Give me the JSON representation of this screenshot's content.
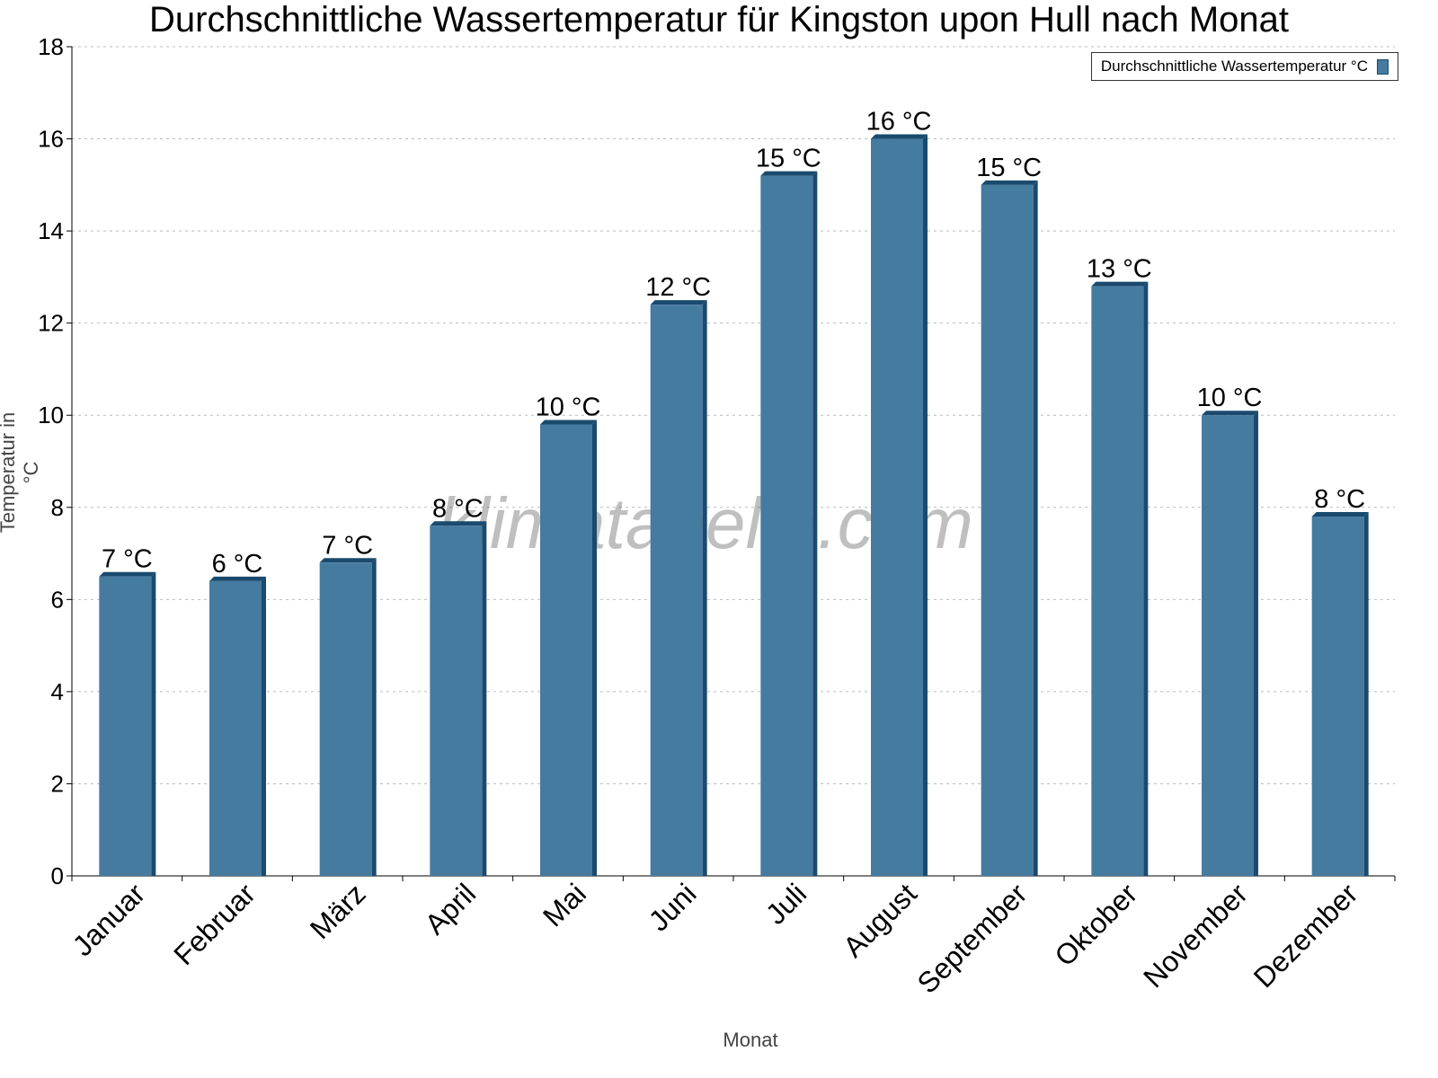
{
  "chart_data": {
    "type": "bar",
    "title": "Durchschnittliche Wassertemperatur für Kingston upon Hull nach Monat",
    "xlabel": "Monat",
    "ylabel": "Temperatur in °C",
    "ylim": [
      0,
      18
    ],
    "yticks": [
      0,
      2,
      4,
      6,
      8,
      10,
      12,
      14,
      16,
      18
    ],
    "grid": true,
    "legend_placement": "top-right",
    "categories": [
      "Januar",
      "Februar",
      "März",
      "April",
      "Mai",
      "Juni",
      "Juli",
      "August",
      "September",
      "Oktober",
      "November",
      "Dezember"
    ],
    "series": [
      {
        "name": "Durchschnittliche Wassertemperatur °C",
        "values": [
          6.5,
          6.4,
          6.8,
          7.6,
          9.8,
          12.4,
          15.2,
          16.0,
          15.0,
          12.8,
          10.0,
          7.8
        ],
        "labels": [
          "7 °C",
          "6 °C",
          "7 °C",
          "8 °C",
          "10 °C",
          "12 °C",
          "15 °C",
          "16 °C",
          "15 °C",
          "13 °C",
          "10 °C",
          "8 °C"
        ],
        "color": "#467ba0",
        "edge_color": "#1a4a6e"
      }
    ],
    "watermark": "klimatabelle.com"
  }
}
